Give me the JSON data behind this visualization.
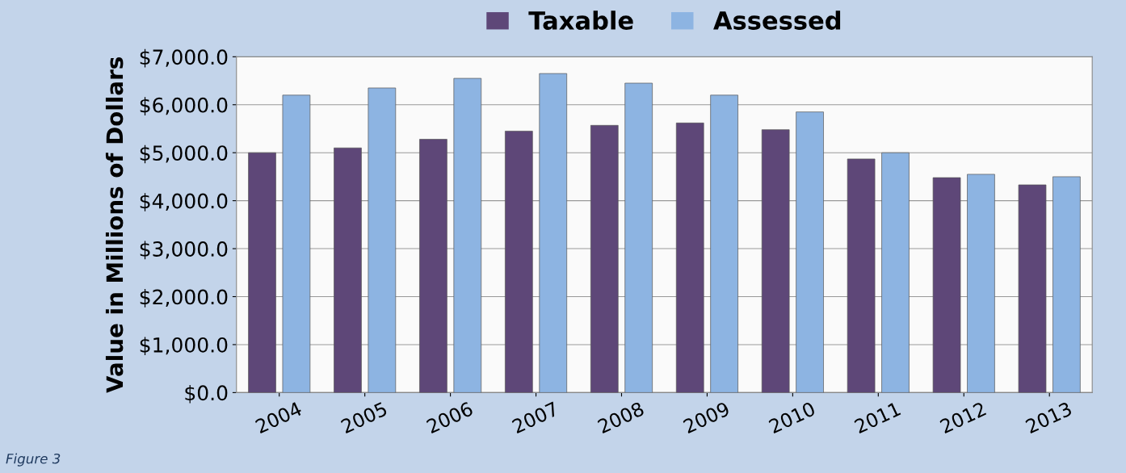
{
  "chart_data": {
    "type": "bar",
    "ylabel": "Value in Millions of Dollars",
    "categories": [
      "2004",
      "2005",
      "2006",
      "2007",
      "2008",
      "2009",
      "2010",
      "2011",
      "2012",
      "2013"
    ],
    "series": [
      {
        "name": "Taxable",
        "color": "#5e4778",
        "values": [
          5000,
          5100,
          5280,
          5450,
          5570,
          5620,
          5480,
          4870,
          4480,
          4330
        ]
      },
      {
        "name": "Assessed",
        "color": "#8db4e2",
        "values": [
          6200,
          6350,
          6550,
          6650,
          6450,
          6200,
          5850,
          5000,
          4550,
          4500
        ]
      }
    ],
    "ylim": [
      0,
      7000
    ],
    "yticks": [
      {
        "value": 0,
        "label": "$0.0"
      },
      {
        "value": 1000,
        "label": "$1,000.0"
      },
      {
        "value": 2000,
        "label": "$2,000.0"
      },
      {
        "value": 3000,
        "label": "$3,000.0"
      },
      {
        "value": 4000,
        "label": "$4,000.0"
      },
      {
        "value": 5000,
        "label": "$5,000.0"
      },
      {
        "value": 6000,
        "label": "$6,000.0"
      },
      {
        "value": 7000,
        "label": "$7,000.0"
      }
    ],
    "grid": "y",
    "legend": "top",
    "annotations": [
      "Figure 3"
    ]
  }
}
